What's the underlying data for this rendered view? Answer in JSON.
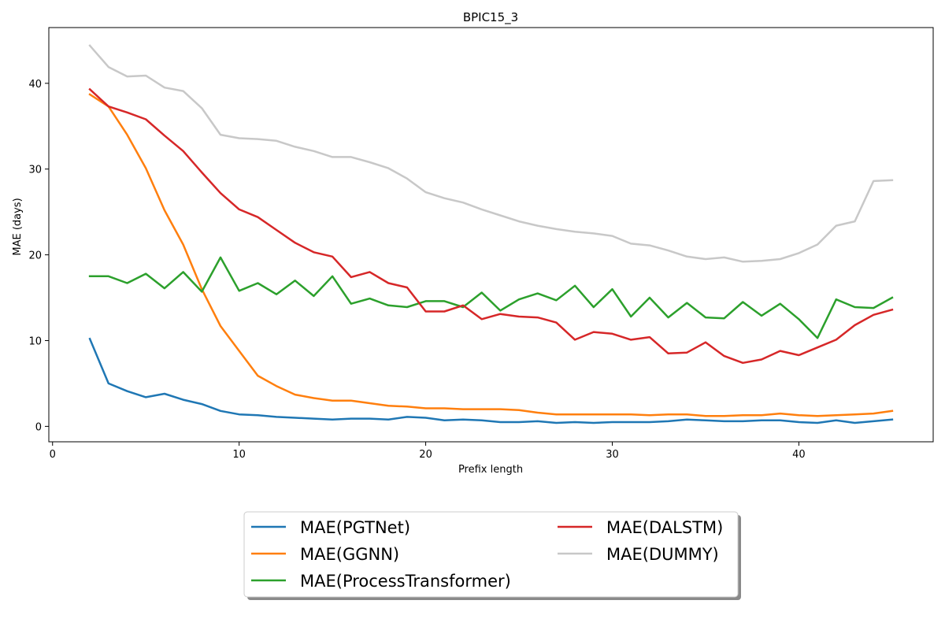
{
  "chart_data": {
    "type": "line",
    "title": "BPIC15_3",
    "xlabel": "Prefix length",
    "ylabel": "MAE (days)",
    "xlim": [
      -0.2,
      47.2
    ],
    "ylim": [
      -1.8,
      46.5
    ],
    "xticks": [
      0,
      10,
      20,
      30,
      40
    ],
    "yticks": [
      0,
      10,
      20,
      30,
      40
    ],
    "grid": false,
    "legend_position": "bottom-center",
    "x": [
      2,
      3,
      4,
      5,
      6,
      7,
      8,
      9,
      10,
      11,
      12,
      13,
      14,
      15,
      16,
      17,
      18,
      19,
      20,
      21,
      22,
      23,
      24,
      25,
      26,
      27,
      28,
      29,
      30,
      31,
      32,
      33,
      34,
      35,
      36,
      37,
      38,
      39,
      40,
      41,
      42,
      43,
      44,
      45
    ],
    "series": [
      {
        "name": "MAE(PGTNet)",
        "color": "#1f77b4",
        "values": [
          10.2,
          5.0,
          4.1,
          3.4,
          3.8,
          3.1,
          2.6,
          1.8,
          1.4,
          1.3,
          1.1,
          1.0,
          0.9,
          0.8,
          0.9,
          0.9,
          0.8,
          1.1,
          1.0,
          0.7,
          0.8,
          0.7,
          0.5,
          0.5,
          0.6,
          0.4,
          0.5,
          0.4,
          0.5,
          0.5,
          0.5,
          0.6,
          0.8,
          0.7,
          0.6,
          0.6,
          0.7,
          0.7,
          0.5,
          0.4,
          0.7,
          0.4,
          0.6,
          0.8
        ]
      },
      {
        "name": "MAE(GGNN)",
        "color": "#ff7f0e",
        "values": [
          38.7,
          37.3,
          34.0,
          30.1,
          25.2,
          21.2,
          16.0,
          11.7,
          8.8,
          5.9,
          4.7,
          3.7,
          3.3,
          3.0,
          3.0,
          2.7,
          2.4,
          2.3,
          2.1,
          2.1,
          2.0,
          2.0,
          2.0,
          1.9,
          1.6,
          1.4,
          1.4,
          1.4,
          1.4,
          1.4,
          1.3,
          1.4,
          1.4,
          1.2,
          1.2,
          1.3,
          1.3,
          1.5,
          1.3,
          1.2,
          1.3,
          1.4,
          1.5,
          1.8
        ]
      },
      {
        "name": "MAE(ProcessTransformer)",
        "color": "#2ca02c",
        "values": [
          17.5,
          17.5,
          16.7,
          17.8,
          16.1,
          18.0,
          15.7,
          19.7,
          15.8,
          16.7,
          15.4,
          17.0,
          15.2,
          17.5,
          14.3,
          14.9,
          14.1,
          13.9,
          14.6,
          14.6,
          13.9,
          15.6,
          13.5,
          14.8,
          15.5,
          14.7,
          16.4,
          13.9,
          16.0,
          12.8,
          15.0,
          12.7,
          14.4,
          12.7,
          12.6,
          14.5,
          12.9,
          14.3,
          12.5,
          10.3,
          14.8,
          13.9,
          13.8,
          15.0
        ]
      },
      {
        "name": "MAE(DALSTM)",
        "color": "#d62728",
        "values": [
          39.3,
          37.3,
          36.6,
          35.8,
          33.9,
          32.1,
          29.6,
          27.2,
          25.3,
          24.4,
          22.9,
          21.4,
          20.3,
          19.8,
          17.4,
          18.0,
          16.7,
          16.2,
          13.4,
          13.4,
          14.1,
          12.5,
          13.1,
          12.8,
          12.7,
          12.1,
          10.1,
          11.0,
          10.8,
          10.1,
          10.4,
          8.5,
          8.6,
          9.8,
          8.2,
          7.4,
          7.8,
          8.8,
          8.3,
          9.2,
          10.1,
          11.8,
          13.0,
          13.6
        ]
      },
      {
        "name": "MAE(DUMMY)",
        "color": "#c8c8c8",
        "values": [
          44.4,
          41.9,
          40.8,
          40.9,
          39.5,
          39.1,
          37.1,
          34.0,
          33.6,
          33.5,
          33.3,
          32.6,
          32.1,
          31.4,
          31.4,
          30.8,
          30.1,
          28.9,
          27.3,
          26.6,
          26.1,
          25.3,
          24.6,
          23.9,
          23.4,
          23.0,
          22.7,
          22.5,
          22.2,
          21.3,
          21.1,
          20.5,
          19.8,
          19.5,
          19.7,
          19.2,
          19.3,
          19.5,
          20.2,
          21.2,
          23.4,
          23.9,
          28.6,
          28.7
        ]
      }
    ],
    "legend_order": [
      0,
      1,
      2,
      3,
      4
    ]
  }
}
